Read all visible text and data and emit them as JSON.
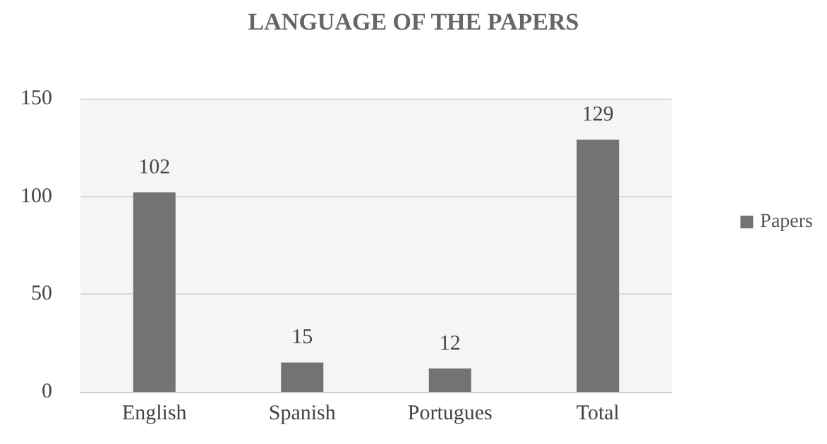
{
  "chart_data": {
    "type": "bar",
    "title": "LANGUAGE OF THE PAPERS",
    "categories": [
      "English",
      "Spanish",
      "Portugues",
      "Total"
    ],
    "series": [
      {
        "name": "Papers",
        "color": "#737373",
        "values": [
          102,
          15,
          12,
          129
        ]
      }
    ],
    "ylim": [
      0,
      150
    ],
    "yticks": [
      0,
      50,
      100,
      150
    ],
    "grid": "y",
    "legend": "right",
    "data_labels": true
  }
}
